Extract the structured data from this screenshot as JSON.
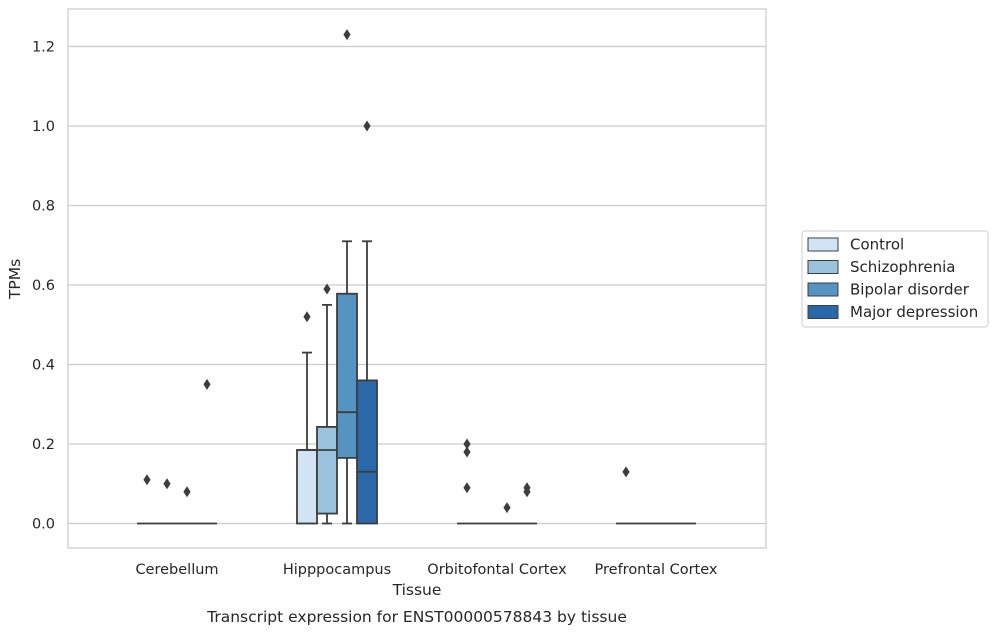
{
  "chart_data": {
    "type": "box",
    "title": "Transcript expression for ENST00000578843 by tissue",
    "xlabel": "Tissue",
    "ylabel": "TPMs",
    "ylim": [
      -0.06,
      1.29
    ],
    "yticks": [
      "0.0",
      "0.2",
      "0.4",
      "0.6",
      "0.8",
      "1.0",
      "1.2"
    ],
    "grid": "horizontal",
    "legend_position": "right",
    "categories": [
      "Cerebellum",
      "Hipppocampus",
      "Orbitofontal Cortex",
      "Prefrontal Cortex"
    ],
    "series": [
      {
        "name": "Control",
        "color": "#d2e3f3",
        "boxes": [
          {
            "q1": 0,
            "median": 0,
            "q3": 0,
            "whisker_low": 0,
            "whisker_high": 0,
            "outliers": [
              0.11
            ]
          },
          {
            "q1": 0,
            "median": 0.185,
            "q3": 0.185,
            "whisker_low": 0,
            "whisker_high": 0.43,
            "outliers": [
              0.52
            ]
          },
          {
            "q1": 0,
            "median": 0,
            "q3": 0,
            "whisker_low": 0,
            "whisker_high": 0,
            "outliers": [
              0.2,
              0.18,
              0.09
            ]
          },
          {
            "q1": 0,
            "median": 0,
            "q3": 0,
            "whisker_low": 0,
            "whisker_high": 0,
            "outliers": [
              0.13
            ]
          }
        ]
      },
      {
        "name": "Schizophrenia",
        "color": "#9ac3dd",
        "boxes": [
          {
            "q1": 0,
            "median": 0,
            "q3": 0,
            "whisker_low": 0,
            "whisker_high": 0,
            "outliers": [
              0.1
            ]
          },
          {
            "q1": 0.025,
            "median": 0.185,
            "q3": 0.243,
            "whisker_low": 0,
            "whisker_high": 0.55,
            "outliers": [
              0.59
            ]
          },
          {
            "q1": 0,
            "median": 0,
            "q3": 0,
            "whisker_low": 0,
            "whisker_high": 0,
            "outliers": []
          },
          {
            "q1": 0,
            "median": 0,
            "q3": 0,
            "whisker_low": 0,
            "whisker_high": 0,
            "outliers": []
          }
        ]
      },
      {
        "name": "Bipolar disorder",
        "color": "#5493c2",
        "boxes": [
          {
            "q1": 0,
            "median": 0,
            "q3": 0,
            "whisker_low": 0,
            "whisker_high": 0,
            "outliers": [
              0.08
            ]
          },
          {
            "q1": 0.165,
            "median": 0.28,
            "q3": 0.578,
            "whisker_low": 0,
            "whisker_high": 0.71,
            "outliers": [
              1.23
            ]
          },
          {
            "q1": 0,
            "median": 0,
            "q3": 0,
            "whisker_low": 0,
            "whisker_high": 0,
            "outliers": [
              0.04
            ]
          },
          {
            "q1": 0,
            "median": 0,
            "q3": 0,
            "whisker_low": 0,
            "whisker_high": 0,
            "outliers": []
          }
        ]
      },
      {
        "name": "Major depression",
        "color": "#2a68a9",
        "boxes": [
          {
            "q1": 0,
            "median": 0,
            "q3": 0,
            "whisker_low": 0,
            "whisker_high": 0,
            "outliers": [
              0.35
            ]
          },
          {
            "q1": 0,
            "median": 0.13,
            "q3": 0.36,
            "whisker_low": 0,
            "whisker_high": 0.71,
            "outliers": [
              1.0
            ]
          },
          {
            "q1": 0,
            "median": 0,
            "q3": 0,
            "whisker_low": 0,
            "whisker_high": 0,
            "outliers": [
              0.09,
              0.08
            ]
          },
          {
            "q1": 0,
            "median": 0,
            "q3": 0,
            "whisker_low": 0,
            "whisker_high": 0,
            "outliers": []
          }
        ]
      }
    ]
  }
}
